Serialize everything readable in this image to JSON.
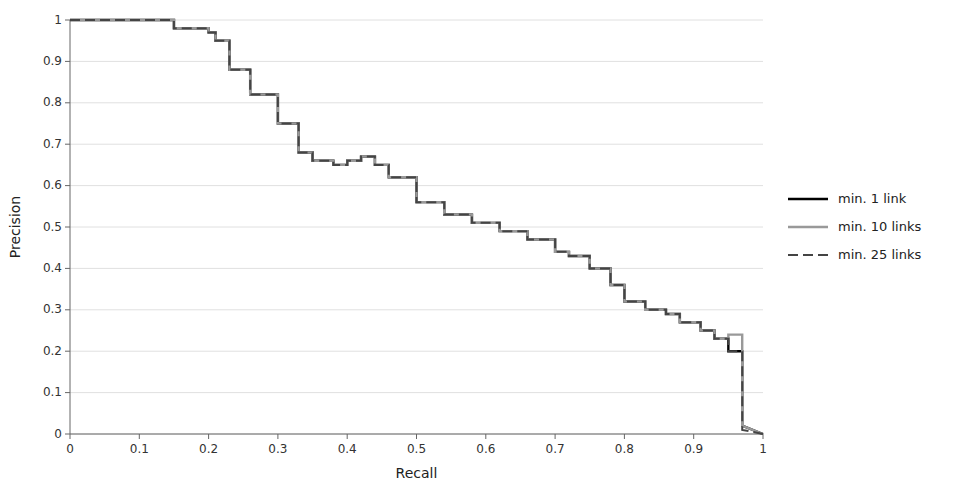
{
  "chart_data": {
    "type": "line",
    "xlabel": "Recall",
    "ylabel": "Precision",
    "xlim": [
      0,
      1
    ],
    "ylim": [
      0,
      1
    ],
    "xticks": [
      0,
      0.1,
      0.2,
      0.3,
      0.4,
      0.5,
      0.6,
      0.7,
      0.8,
      0.9,
      1
    ],
    "yticks": [
      0,
      0.1,
      0.2,
      0.3,
      0.4,
      0.5,
      0.6,
      0.7,
      0.8,
      0.9,
      1
    ],
    "grid": "y",
    "legend": "right",
    "x": [
      0.0,
      0.15,
      0.15,
      0.2,
      0.2,
      0.21,
      0.21,
      0.23,
      0.23,
      0.26,
      0.26,
      0.3,
      0.3,
      0.33,
      0.33,
      0.35,
      0.35,
      0.38,
      0.38,
      0.4,
      0.4,
      0.42,
      0.42,
      0.44,
      0.44,
      0.46,
      0.46,
      0.5,
      0.5,
      0.54,
      0.54,
      0.58,
      0.58,
      0.62,
      0.62,
      0.66,
      0.66,
      0.7,
      0.7,
      0.72,
      0.72,
      0.75,
      0.75,
      0.78,
      0.78,
      0.8,
      0.8,
      0.83,
      0.83,
      0.86,
      0.86,
      0.88,
      0.88,
      0.91,
      0.91,
      0.93,
      0.93,
      0.95,
      0.95,
      0.97,
      0.97,
      1.0
    ],
    "series": [
      {
        "name": "min. 1 link",
        "color": "#000000",
        "line_style": "solid",
        "values": [
          1.0,
          1.0,
          0.98,
          0.98,
          0.97,
          0.97,
          0.95,
          0.95,
          0.88,
          0.88,
          0.82,
          0.82,
          0.75,
          0.75,
          0.68,
          0.68,
          0.66,
          0.66,
          0.65,
          0.65,
          0.66,
          0.66,
          0.67,
          0.67,
          0.65,
          0.65,
          0.62,
          0.62,
          0.56,
          0.56,
          0.53,
          0.53,
          0.51,
          0.51,
          0.49,
          0.49,
          0.47,
          0.47,
          0.44,
          0.44,
          0.43,
          0.43,
          0.4,
          0.4,
          0.36,
          0.36,
          0.32,
          0.32,
          0.3,
          0.3,
          0.29,
          0.29,
          0.27,
          0.27,
          0.25,
          0.25,
          0.23,
          0.23,
          0.2,
          0.2,
          0.02,
          0.0
        ]
      },
      {
        "name": "min. 10 links",
        "color": "#999999",
        "line_style": "solid",
        "values": [
          1.0,
          1.0,
          0.98,
          0.98,
          0.97,
          0.97,
          0.95,
          0.95,
          0.88,
          0.88,
          0.82,
          0.82,
          0.75,
          0.75,
          0.68,
          0.68,
          0.66,
          0.66,
          0.65,
          0.65,
          0.66,
          0.66,
          0.67,
          0.67,
          0.65,
          0.65,
          0.62,
          0.62,
          0.56,
          0.56,
          0.53,
          0.53,
          0.51,
          0.51,
          0.49,
          0.49,
          0.47,
          0.47,
          0.44,
          0.44,
          0.43,
          0.43,
          0.4,
          0.4,
          0.36,
          0.36,
          0.32,
          0.32,
          0.3,
          0.3,
          0.29,
          0.29,
          0.27,
          0.27,
          0.25,
          0.25,
          0.23,
          0.23,
          0.24,
          0.24,
          0.02,
          0.0
        ]
      },
      {
        "name": "min. 25 links",
        "color": "#444444",
        "line_style": "dashed",
        "values": [
          1.0,
          1.0,
          0.98,
          0.98,
          0.97,
          0.97,
          0.95,
          0.95,
          0.88,
          0.88,
          0.82,
          0.82,
          0.75,
          0.75,
          0.68,
          0.68,
          0.66,
          0.66,
          0.65,
          0.65,
          0.66,
          0.66,
          0.67,
          0.67,
          0.65,
          0.65,
          0.62,
          0.62,
          0.56,
          0.56,
          0.53,
          0.53,
          0.51,
          0.51,
          0.49,
          0.49,
          0.47,
          0.47,
          0.44,
          0.44,
          0.43,
          0.43,
          0.4,
          0.4,
          0.36,
          0.36,
          0.32,
          0.32,
          0.3,
          0.3,
          0.29,
          0.29,
          0.27,
          0.27,
          0.25,
          0.25,
          0.23,
          0.23,
          0.2,
          0.2,
          0.01,
          0.0
        ]
      }
    ]
  }
}
